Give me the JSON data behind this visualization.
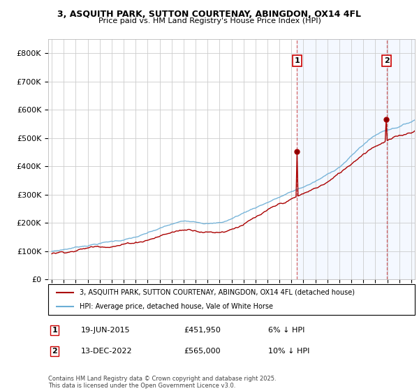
{
  "title_line1": "3, ASQUITH PARK, SUTTON COURTENAY, ABINGDON, OX14 4FL",
  "title_line2": "Price paid vs. HM Land Registry's House Price Index (HPI)",
  "ylim": [
    0,
    850000
  ],
  "yticks": [
    0,
    100000,
    200000,
    300000,
    400000,
    500000,
    600000,
    700000,
    800000
  ],
  "ytick_labels": [
    "£0",
    "£100K",
    "£200K",
    "£300K",
    "£400K",
    "£500K",
    "£600K",
    "£700K",
    "£800K"
  ],
  "hpi_color": "#6baed6",
  "hpi_fill_color": "#ddeeff",
  "price_color": "#aa0000",
  "dashed_color": "#cc4444",
  "marker1_year": 2015.47,
  "marker2_year": 2022.95,
  "marker1_price": 451950,
  "marker2_price": 565000,
  "legend_price_label": "3, ASQUITH PARK, SUTTON COURTENAY, ABINGDON, OX14 4FL (detached house)",
  "legend_hpi_label": "HPI: Average price, detached house, Vale of White Horse",
  "copyright_text": "Contains HM Land Registry data © Crown copyright and database right 2025.\nThis data is licensed under the Open Government Licence v3.0.",
  "background_color": "#ffffff",
  "grid_color": "#cccccc",
  "start_year": 1995,
  "end_year": 2025
}
